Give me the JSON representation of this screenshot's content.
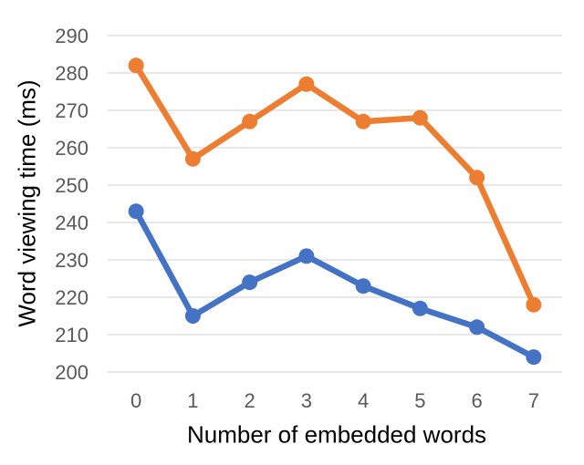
{
  "chart_data": {
    "type": "line",
    "xlabel": "Number of embedded words",
    "ylabel": "Word viewing time (ms)",
    "categories": [
      "0",
      "1",
      "2",
      "3",
      "4",
      "5",
      "6",
      "7"
    ],
    "series": [
      {
        "id": "blue",
        "color": "#4472C4",
        "values": [
          243,
          215,
          224,
          231,
          223,
          217,
          212,
          204
        ]
      },
      {
        "id": "orange",
        "color": "#ED7D31",
        "values": [
          282,
          257,
          267,
          277,
          267,
          268,
          252,
          218
        ]
      }
    ],
    "ylim": [
      200,
      290
    ],
    "ytick_step": 10,
    "yticks": [
      "200",
      "210",
      "220",
      "230",
      "240",
      "250",
      "260",
      "270",
      "280",
      "290"
    ],
    "grid": "horizontal",
    "legend": "none",
    "marker": "circle",
    "colors": {
      "gridline": "#D9D9D9",
      "tick_label": "#595959",
      "axis_title": "#000000",
      "background": "#FFFFFF"
    }
  }
}
